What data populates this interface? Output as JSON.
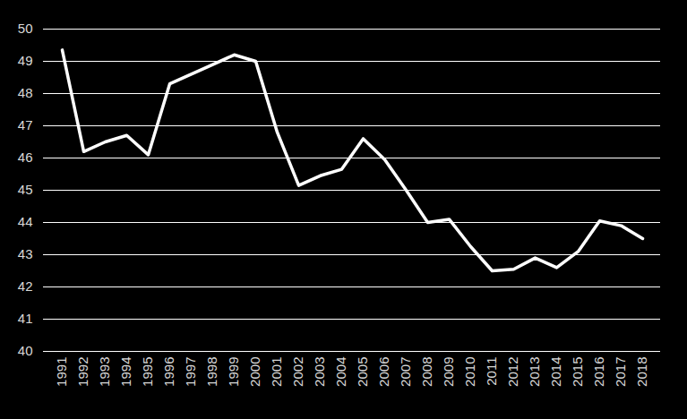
{
  "chart_data": {
    "type": "line",
    "categories": [
      "1991",
      "1992",
      "1993",
      "1994",
      "1995",
      "1996",
      "1997",
      "1998",
      "1999",
      "2000",
      "2001",
      "2002",
      "2003",
      "2004",
      "2005",
      "2006",
      "2007",
      "2008",
      "2009",
      "2010",
      "2011",
      "2012",
      "2013",
      "2014",
      "2015",
      "2016",
      "2017",
      "2018"
    ],
    "values": [
      49.35,
      46.2,
      46.5,
      46.7,
      46.1,
      48.3,
      48.6,
      48.9,
      49.2,
      49.0,
      46.8,
      45.15,
      45.45,
      45.65,
      46.6,
      45.95,
      45.0,
      44.0,
      44.1,
      43.25,
      42.5,
      42.55,
      42.9,
      42.6,
      43.1,
      44.05,
      43.9,
      43.5
    ],
    "color": "#ffffff",
    "ylim": [
      40,
      50
    ],
    "yticks": [
      40,
      41,
      42,
      43,
      44,
      45,
      46,
      47,
      48,
      49,
      50
    ],
    "grid": true
  }
}
